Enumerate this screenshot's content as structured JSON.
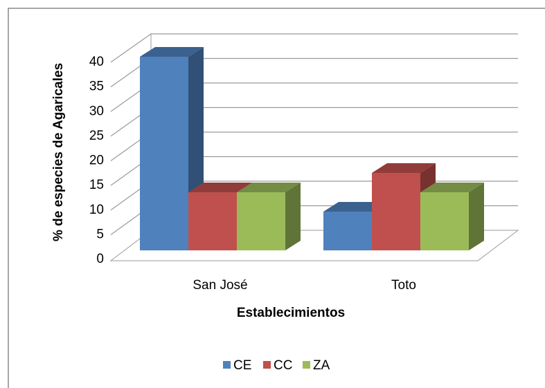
{
  "chart_data": {
    "type": "bar3d",
    "x_label": "Establecimientos",
    "y_label": "% de especies de Agaricales",
    "categories": [
      "San José",
      "Toto"
    ],
    "series": [
      {
        "name": "CE",
        "color": "#4f81bd",
        "values": [
          40,
          8
        ]
      },
      {
        "name": "CC",
        "color": "#c0504d",
        "values": [
          12,
          16
        ]
      },
      {
        "name": "ZA",
        "color": "#9bbb59",
        "values": [
          12,
          12
        ]
      }
    ],
    "ylim": [
      0,
      40
    ],
    "yticks": [
      0,
      5,
      10,
      15,
      20,
      25,
      30,
      35,
      40
    ],
    "grid": true,
    "legend": "bottom"
  }
}
